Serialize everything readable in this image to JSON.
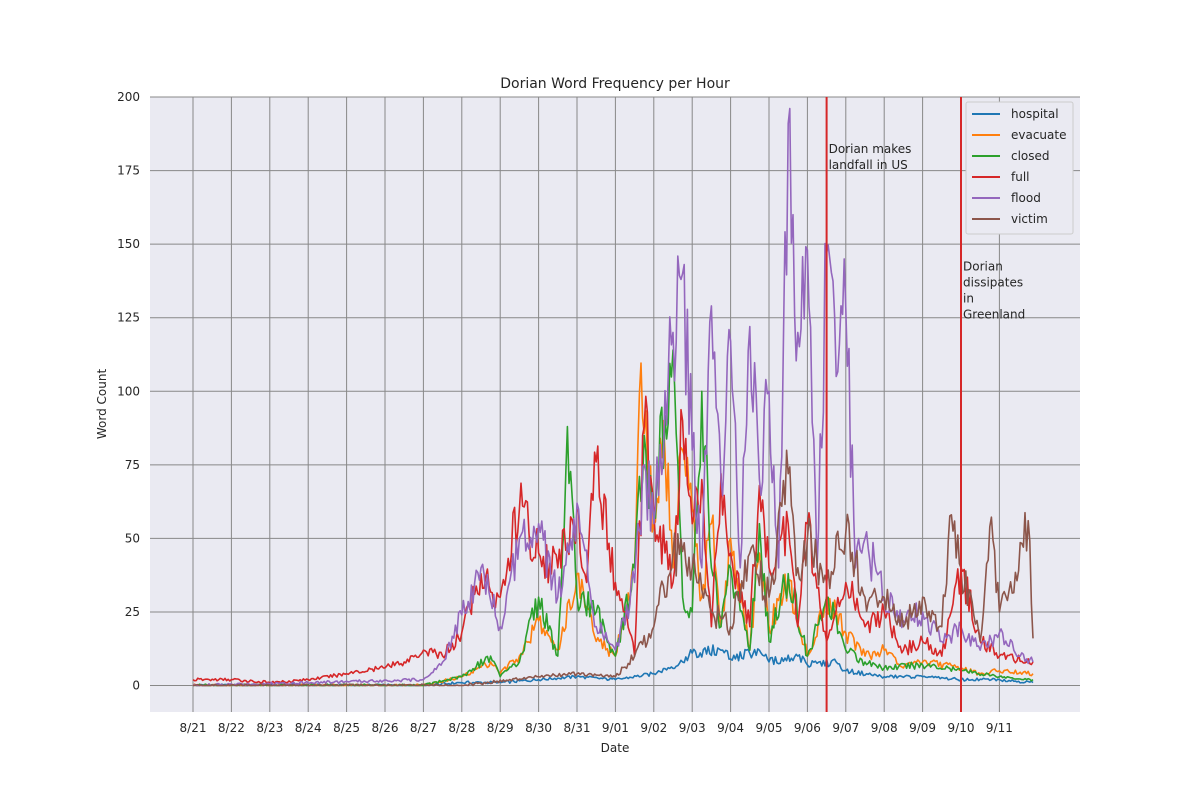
{
  "chart_data": {
    "type": "line",
    "title": "Dorian Word Frequency per Hour",
    "xlabel": "Date",
    "ylabel": "Word Count",
    "ylim": [
      -9,
      200
    ],
    "xlim": [
      "2019-08-20",
      "2019-09-12"
    ],
    "x_ticks": [
      "8/21",
      "8/22",
      "8/23",
      "8/24",
      "8/25",
      "8/26",
      "8/27",
      "8/28",
      "8/29",
      "8/30",
      "8/31",
      "9/01",
      "9/02",
      "9/03",
      "9/04",
      "9/05",
      "9/06",
      "9/07",
      "9/08",
      "9/09",
      "9/10",
      "9/11"
    ],
    "y_ticks": [
      0,
      25,
      50,
      75,
      100,
      125,
      150,
      175,
      200
    ],
    "grid": true,
    "legend_position": "top-right",
    "annotations": [
      {
        "x": "2019-09-06T12:00",
        "lines": [
          "Dorian makes",
          "landfall in US"
        ],
        "y": 181,
        "color": "#d62728"
      },
      {
        "x": "2019-09-10T00:00",
        "lines": [
          "Dorian",
          "dissipates",
          "in",
          "Greenland"
        ],
        "y": 141,
        "color": "#d62728"
      }
    ],
    "x_end": "2019-09-11T21:00",
    "series": [
      {
        "name": "hospital",
        "color": "#1f77b4",
        "x": [
          "2019-08-21",
          "2019-08-27",
          "2019-08-28",
          "2019-08-29",
          "2019-08-30",
          "2019-08-31",
          "2019-09-01",
          "2019-09-02",
          "2019-09-02T18:00",
          "2019-09-03",
          "2019-09-03T18:00",
          "2019-09-04",
          "2019-09-04T18:00",
          "2019-09-05",
          "2019-09-05T18:00",
          "2019-09-06",
          "2019-09-06T18:00",
          "2019-09-07",
          "2019-09-08",
          "2019-09-09",
          "2019-09-10",
          "2019-09-11",
          "2019-09-11T21:00"
        ],
        "values": [
          0,
          0,
          1,
          1,
          2,
          3,
          2,
          4,
          8,
          11,
          12,
          9,
          12,
          8,
          10,
          7,
          8,
          5,
          3,
          3,
          2,
          2,
          1
        ]
      },
      {
        "name": "evacuate",
        "color": "#ff7f0e",
        "x": [
          "2019-08-21",
          "2019-08-27",
          "2019-08-28",
          "2019-08-28T18:00",
          "2019-08-29",
          "2019-08-29T12:00",
          "2019-08-30",
          "2019-08-30T12:00",
          "2019-08-31",
          "2019-08-31T12:00",
          "2019-09-01",
          "2019-09-01T12:00",
          "2019-09-01T15:00",
          "2019-09-02",
          "2019-09-02T06:00",
          "2019-09-02T12:00",
          "2019-09-02T18:00",
          "2019-09-03",
          "2019-09-03T06:00",
          "2019-09-03T12:00",
          "2019-09-03T18:00",
          "2019-09-04",
          "2019-09-04T12:00",
          "2019-09-04T18:00",
          "2019-09-05",
          "2019-09-05T12:00",
          "2019-09-06",
          "2019-09-06T12:00",
          "2019-09-07",
          "2019-09-07T12:00",
          "2019-09-08",
          "2019-09-08T12:00",
          "2019-09-09",
          "2019-09-10",
          "2019-09-10T12:00",
          "2019-09-11",
          "2019-09-11T21:00"
        ],
        "values": [
          0,
          0,
          3,
          8,
          4,
          10,
          22,
          12,
          38,
          15,
          10,
          40,
          99,
          55,
          90,
          40,
          80,
          60,
          30,
          55,
          20,
          50,
          12,
          45,
          20,
          35,
          10,
          30,
          18,
          10,
          12,
          6,
          8,
          6,
          4,
          5,
          4
        ]
      },
      {
        "name": "closed",
        "color": "#2ca02c",
        "x": [
          "2019-08-21",
          "2019-08-27",
          "2019-08-28",
          "2019-08-28T18:00",
          "2019-08-29",
          "2019-08-29T12:00",
          "2019-08-30",
          "2019-08-30T12:00",
          "2019-08-30T18:00",
          "2019-08-31",
          "2019-08-31T12:00",
          "2019-09-01",
          "2019-09-01T12:00",
          "2019-09-01T18:00",
          "2019-09-02",
          "2019-09-02T12:00",
          "2019-09-02T18:00",
          "2019-09-03",
          "2019-09-03T06:00",
          "2019-09-03T12:00",
          "2019-09-03T18:00",
          "2019-09-04",
          "2019-09-04T12:00",
          "2019-09-04T18:00",
          "2019-09-05",
          "2019-09-05T12:00",
          "2019-09-06",
          "2019-09-06T12:00",
          "2019-09-07",
          "2019-09-07T12:00",
          "2019-09-08",
          "2019-09-09",
          "2019-09-10",
          "2019-09-11",
          "2019-09-11T21:00"
        ],
        "values": [
          0,
          0,
          3,
          10,
          3,
          8,
          30,
          10,
          88,
          30,
          25,
          10,
          40,
          85,
          60,
          114,
          30,
          25,
          100,
          40,
          20,
          40,
          12,
          55,
          15,
          38,
          10,
          30,
          12,
          8,
          6,
          7,
          5,
          3,
          2
        ]
      },
      {
        "name": "full",
        "color": "#d62728",
        "x": [
          "2019-08-21",
          "2019-08-22",
          "2019-08-23",
          "2019-08-24",
          "2019-08-25",
          "2019-08-26",
          "2019-08-26T12:00",
          "2019-08-27",
          "2019-08-27T12:00",
          "2019-08-28",
          "2019-08-28T12:00",
          "2019-08-29",
          "2019-08-29T12:00",
          "2019-08-30",
          "2019-08-30T12:00",
          "2019-08-31",
          "2019-08-31T06:00",
          "2019-08-31T12:00",
          "2019-09-01",
          "2019-09-01T06:00",
          "2019-09-01T12:00",
          "2019-09-01T18:00",
          "2019-09-02",
          "2019-09-02T12:00",
          "2019-09-02T18:00",
          "2019-09-03",
          "2019-09-03T06:00",
          "2019-09-03T12:00",
          "2019-09-03T18:00",
          "2019-09-04",
          "2019-09-04T12:00",
          "2019-09-04T18:00",
          "2019-09-05",
          "2019-09-05T12:00",
          "2019-09-05T18:00",
          "2019-09-06",
          "2019-09-06T12:00",
          "2019-09-07",
          "2019-09-07T12:00",
          "2019-09-08",
          "2019-09-08T12:00",
          "2019-09-09",
          "2019-09-09T12:00",
          "2019-09-10",
          "2019-09-10T12:00",
          "2019-09-11",
          "2019-09-11T21:00"
        ],
        "values": [
          2,
          2,
          1,
          2,
          4,
          6,
          8,
          12,
          10,
          18,
          38,
          30,
          60,
          45,
          40,
          60,
          35,
          76,
          35,
          25,
          10,
          88,
          60,
          35,
          90,
          55,
          70,
          20,
          72,
          45,
          20,
          68,
          40,
          55,
          20,
          55,
          15,
          35,
          20,
          25,
          12,
          15,
          10,
          40,
          15,
          10,
          8
        ]
      },
      {
        "name": "flood",
        "color": "#9467bd",
        "x": [
          "2019-08-21",
          "2019-08-27",
          "2019-08-27T12:00",
          "2019-08-28",
          "2019-08-28T12:00",
          "2019-08-29",
          "2019-08-29T12:00",
          "2019-08-30",
          "2019-08-30T12:00",
          "2019-08-31",
          "2019-08-31T12:00",
          "2019-09-01",
          "2019-09-01T12:00",
          "2019-09-01T18:00",
          "2019-09-02",
          "2019-09-02T12:00",
          "2019-09-02T18:00",
          "2019-09-03",
          "2019-09-03T06:00",
          "2019-09-03T12:00",
          "2019-09-03T18:00",
          "2019-09-04",
          "2019-09-04T06:00",
          "2019-09-04T12:00",
          "2019-09-04T18:00",
          "2019-09-05",
          "2019-09-05T06:00",
          "2019-09-05T12:00",
          "2019-09-05T15:00",
          "2019-09-05T18:00",
          "2019-09-06",
          "2019-09-06T06:00",
          "2019-09-06T12:00",
          "2019-09-06T18:00",
          "2019-09-07",
          "2019-09-07T06:00",
          "2019-09-07T12:00",
          "2019-09-08",
          "2019-09-08T12:00",
          "2019-09-09",
          "2019-09-09T12:00",
          "2019-09-10",
          "2019-09-10T12:00",
          "2019-09-11",
          "2019-09-11T12:00",
          "2019-09-11T21:00"
        ],
        "values": [
          0,
          2,
          8,
          24,
          40,
          20,
          50,
          55,
          30,
          62,
          20,
          12,
          35,
          75,
          55,
          120,
          140,
          80,
          40,
          129,
          70,
          117,
          40,
          122,
          70,
          100,
          40,
          191,
          160,
          120,
          148,
          40,
          147,
          105,
          128,
          40,
          50,
          30,
          22,
          25,
          15,
          20,
          12,
          18,
          10,
          8
        ]
      },
      {
        "name": "victim",
        "color": "#8c564b",
        "x": [
          "2019-08-21",
          "2019-08-28",
          "2019-08-30",
          "2019-08-31",
          "2019-09-01",
          "2019-09-01T12:00",
          "2019-09-02",
          "2019-09-02T12:00",
          "2019-09-03",
          "2019-09-03T12:00",
          "2019-09-04",
          "2019-09-04T12:00",
          "2019-09-05",
          "2019-09-05T12:00",
          "2019-09-05T18:00",
          "2019-09-06",
          "2019-09-06T12:00",
          "2019-09-07",
          "2019-09-07T12:00",
          "2019-09-08",
          "2019-09-08T12:00",
          "2019-09-09",
          "2019-09-09T12:00",
          "2019-09-09T18:00",
          "2019-09-10",
          "2019-09-10T12:00",
          "2019-09-10T18:00",
          "2019-09-11",
          "2019-09-11T12:00",
          "2019-09-11T18:00",
          "2019-09-11T21:00"
        ],
        "values": [
          0,
          0,
          3,
          4,
          3,
          10,
          20,
          45,
          40,
          25,
          20,
          45,
          30,
          72,
          40,
          50,
          35,
          52,
          30,
          30,
          20,
          30,
          20,
          58,
          40,
          15,
          54,
          25,
          39,
          56,
          16
        ]
      }
    ]
  }
}
